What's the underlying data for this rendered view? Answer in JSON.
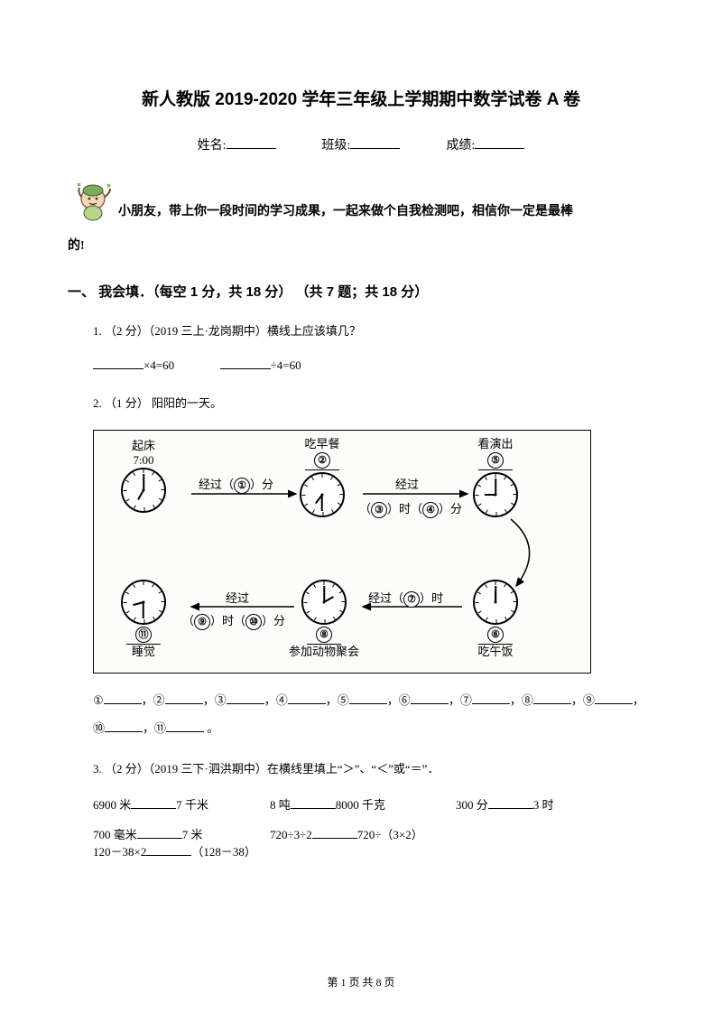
{
  "title": "新人教版 2019-2020 学年三年级上学期期中数学试卷 A 卷",
  "info": {
    "name_label": "姓名:",
    "class_label": "班级:",
    "score_label": "成绩:"
  },
  "intro": {
    "line1": "小朋友，带上你一段时间的学习成果，一起来做个自我检测吧，相信你一定是最棒",
    "line2": "的!"
  },
  "section1": {
    "heading": "一、 我会填．（每空 1 分，共 18 分） （共 7 题；共 18 分）"
  },
  "q1": {
    "text": "1. （2 分）（2019 三上·龙岗期中）横线上应该填几？",
    "eq1_suffix": "×4=60",
    "eq2_suffix": "÷4=60"
  },
  "q2": {
    "text": "2. （1 分） 阳阳的一天。",
    "nodes": {
      "n1": {
        "label": "起床",
        "sub": "7:00",
        "hour_deg": 210,
        "min_deg": 0
      },
      "n2": {
        "label": "吃早餐",
        "badge": "②",
        "hour_deg": 217,
        "min_deg": 180
      },
      "n5": {
        "label": "看演出",
        "badge": "⑤",
        "hour_deg": 270,
        "min_deg": 0
      },
      "n11": {
        "badge": "⑪",
        "bottom": "睡觉",
        "hour_deg": 255,
        "min_deg": 180
      },
      "n8": {
        "badge": "⑧",
        "bottom": "参加动物聚会",
        "hour_deg": 60,
        "min_deg": 0
      },
      "n6": {
        "badge": "⑥",
        "bottom": "吃午饭",
        "hour_deg": 0,
        "min_deg": 0
      }
    },
    "arrow_labels": {
      "a1": {
        "pre": "经过（",
        "badge": "①",
        "post": "）分"
      },
      "a3": {
        "pre": "经过",
        "mid1_pre": "（",
        "badge1": "③",
        "mid1_post": "）时（",
        "badge2": "④",
        "mid2_post": "）分"
      },
      "a7": {
        "pre": "经过（",
        "badge": "⑦",
        "post": "）时"
      },
      "a9": {
        "pre": "经过",
        "mid1_pre": "（",
        "badge1": "⑨",
        "mid1_post": "）时（",
        "badge2": "⑩",
        "mid2_post": "）分"
      }
    },
    "answers": {
      "prefix_items": [
        "①",
        "②",
        "③",
        "④",
        "⑤",
        "⑥",
        "⑦",
        "⑧",
        "⑨",
        "⑩",
        "⑪"
      ],
      "sep": "，",
      "end": " 。"
    }
  },
  "q3": {
    "text": "3. （2 分）（2019 三下·泗洪期中）在横线里填上“＞”、“＜”或“＝”．",
    "row1": [
      {
        "left": "6900 米",
        "right": "7 千米"
      },
      {
        "left": "8 吨",
        "right": "8000 千克"
      },
      {
        "left": "300 分",
        "right": "3 时"
      }
    ],
    "row2": [
      {
        "left": "700 毫米",
        "right": "7 米"
      },
      {
        "left": "720÷3÷2",
        "right": "720÷（3×2）"
      },
      {
        "left": "120－38×2",
        "right": "（128－38）"
      }
    ]
  },
  "footer": {
    "text": "第 1 页 共 8 页"
  }
}
